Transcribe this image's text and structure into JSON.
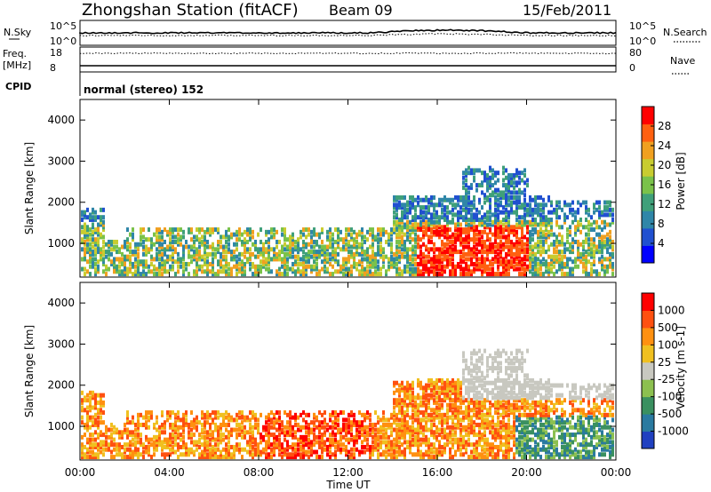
{
  "header": {
    "title": "Zhongshan Station (fitACF)",
    "beam": "Beam 09",
    "date": "15/Feb/2011",
    "cpid_label": "CPID",
    "cpid_value": "normal (stereo) 152"
  },
  "strip_panels": {
    "nsky_label": "N.Sky",
    "nsearch_label": "N.Search",
    "nsky_ticks": [
      "10^5",
      "10^0"
    ],
    "nsearch_ticks": [
      "10^5",
      "10^0"
    ],
    "freq_label": "Freq.",
    "freq_unit": "[MHz]",
    "freq_ticks": [
      "18",
      "8"
    ],
    "nave_label": "Nave",
    "nave_ticks": [
      "80",
      "0"
    ]
  },
  "x_axis": {
    "label": "Time UT",
    "ticks": [
      "00:00",
      "04:00",
      "08:00",
      "12:00",
      "16:00",
      "20:00",
      "00:00"
    ]
  },
  "chart_data": [
    {
      "type": "heatmap",
      "title": "",
      "xlabel": "Time UT",
      "ylabel": "Slant Range [km]",
      "xlim": [
        "00:00",
        "24:00"
      ],
      "ylim": [
        180,
        4500
      ],
      "y_ticks": [
        "1000",
        "2000",
        "3000",
        "4000"
      ],
      "colorbar": {
        "label": "Power [dB]",
        "ticks": [
          "4",
          "8",
          "12",
          "16",
          "20",
          "24",
          "28"
        ],
        "colors": [
          "#0000ff",
          "#2050d0",
          "#2f86a8",
          "#3fa07a",
          "#7ac24a",
          "#c8cc30",
          "#f0a020",
          "#ff6010",
          "#ff0000"
        ]
      }
    },
    {
      "type": "heatmap",
      "title": "",
      "xlabel": "Time UT",
      "ylabel": "Slant Range [km]",
      "xlim": [
        "00:00",
        "24:00"
      ],
      "ylim": [
        180,
        4500
      ],
      "y_ticks": [
        "1000",
        "2000",
        "3000",
        "4000"
      ],
      "colorbar": {
        "label": "Velocity [m s-1]",
        "ticks": [
          "1000",
          "500",
          "100",
          "25",
          "-25",
          "-100",
          "-500",
          "-1000"
        ],
        "colors": [
          "#2040c0",
          "#2a7aa0",
          "#3a9060",
          "#8cc050",
          "#c8c8c0",
          "#f0c020",
          "#ff9010",
          "#ff5010",
          "#ff0000"
        ]
      }
    }
  ]
}
